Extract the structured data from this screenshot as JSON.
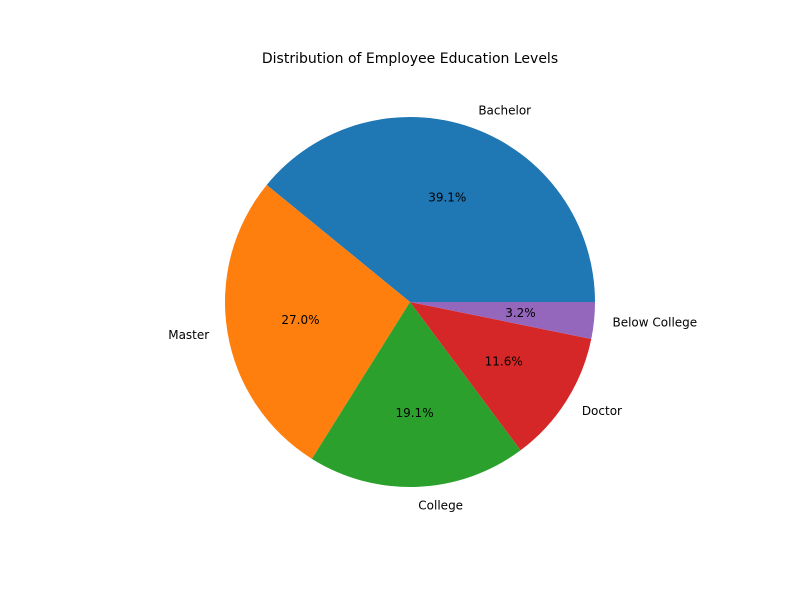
{
  "chart_data": {
    "type": "pie",
    "title": "Distribution of Employee Education Levels",
    "start_angle_deg": 0,
    "direction": "counterclockwise",
    "slices": [
      {
        "label": "Bachelor",
        "value": 39.1,
        "pct_label": "39.1%",
        "color": "#1f77b4"
      },
      {
        "label": "Master",
        "value": 27.0,
        "pct_label": "27.0%",
        "color": "#ff7f0e"
      },
      {
        "label": "College",
        "value": 19.1,
        "pct_label": "19.1%",
        "color": "#2ca02c"
      },
      {
        "label": "Doctor",
        "value": 11.6,
        "pct_label": "11.6%",
        "color": "#d62728"
      },
      {
        "label": "Below College",
        "value": 3.2,
        "pct_label": "3.2%",
        "color": "#9467bd"
      }
    ]
  }
}
